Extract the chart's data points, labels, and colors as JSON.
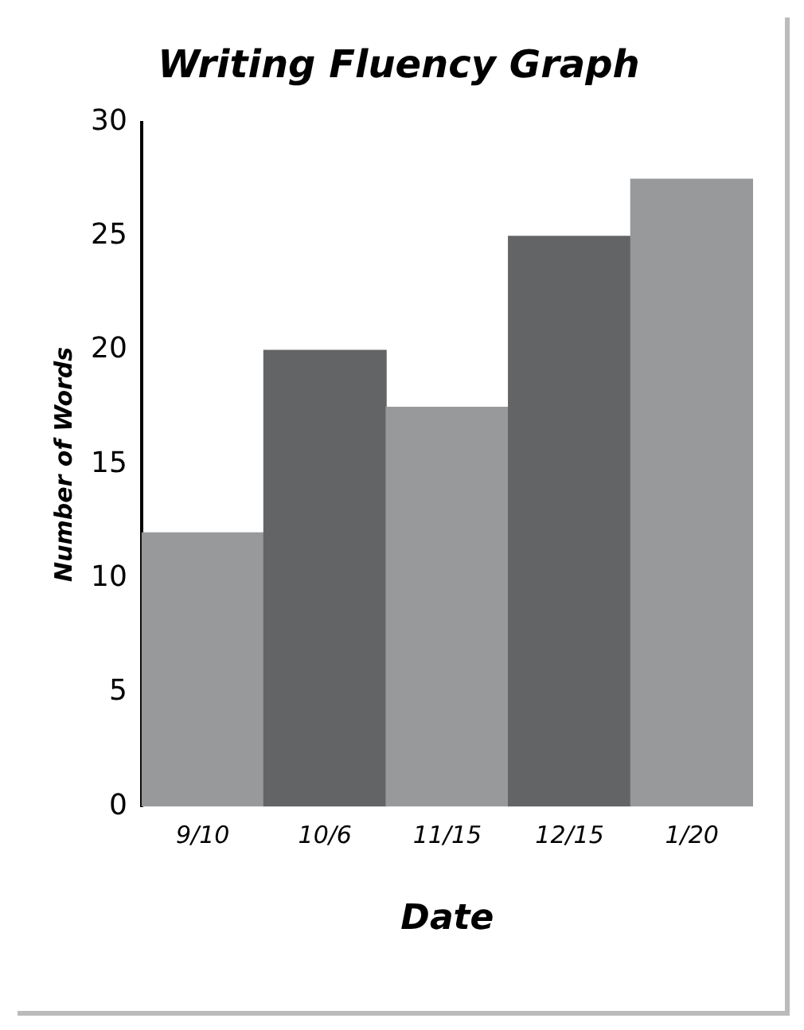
{
  "chart_data": {
    "type": "bar",
    "title": "Writing Fluency Graph",
    "xlabel": "Date",
    "ylabel": "Number of Words",
    "categories": [
      "9/10",
      "10/6",
      "11/15",
      "12/15",
      "1/20"
    ],
    "values": [
      12,
      20,
      17.5,
      25,
      27.5
    ],
    "colors": [
      "#98999b",
      "#636466",
      "#98999b",
      "#636466",
      "#98999b"
    ],
    "ylim": [
      0,
      30
    ],
    "yticks": [
      0,
      5,
      10,
      15,
      20,
      25,
      30
    ],
    "grid": false,
    "legend": false
  }
}
